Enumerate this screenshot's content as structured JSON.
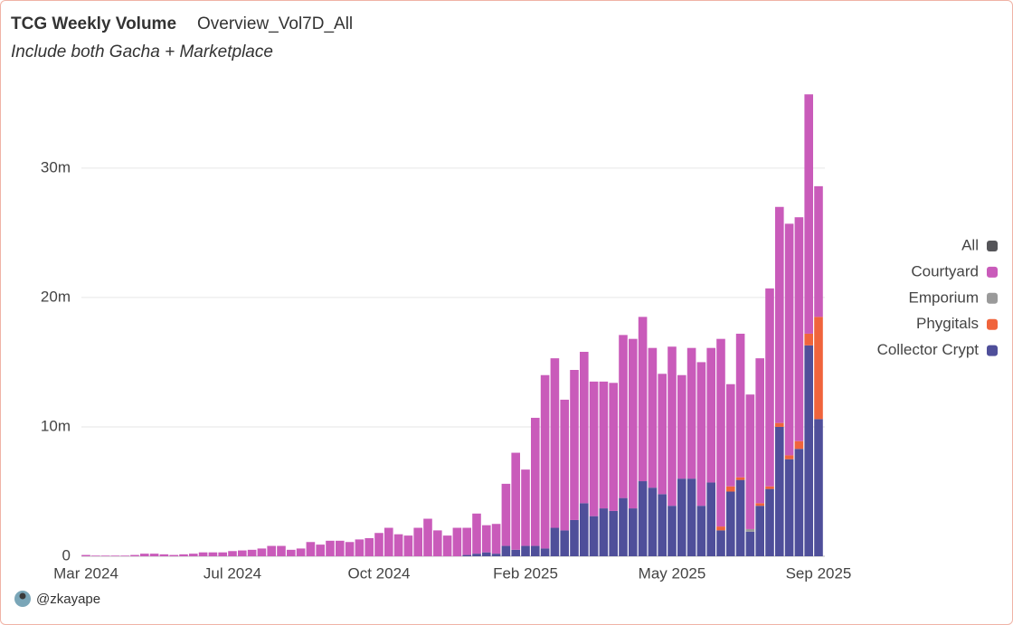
{
  "header": {
    "title": "TCG Weekly Volume",
    "query": "Overview_Vol7D_All",
    "subtitle": "Include both Gacha + Marketplace"
  },
  "footer": {
    "author": "@zkayape"
  },
  "chart_data": {
    "type": "stacked_bar",
    "categories": [
      "Mar 2024",
      null,
      null,
      null,
      null,
      null,
      null,
      null,
      null,
      null,
      null,
      null,
      null,
      null,
      null,
      "Jul 2024",
      null,
      null,
      null,
      null,
      null,
      null,
      null,
      null,
      null,
      null,
      null,
      null,
      null,
      null,
      "Oct 2024",
      null,
      null,
      null,
      null,
      null,
      null,
      null,
      null,
      null,
      null,
      null,
      null,
      null,
      null,
      "Feb 2025",
      null,
      null,
      null,
      null,
      null,
      null,
      null,
      null,
      null,
      null,
      null,
      null,
      null,
      null,
      "May 2025",
      null,
      null,
      null,
      null,
      null,
      null,
      null,
      null,
      null,
      null,
      null,
      null,
      null,
      null,
      "Sep 2025"
    ],
    "ylim": [
      0,
      36000000
    ],
    "yticks": [
      0,
      {
        "value": 10000000,
        "label": "10m"
      },
      {
        "value": 20000000,
        "label": "20m"
      },
      {
        "value": 30000000,
        "label": "30m"
      }
    ],
    "grid": true,
    "legend": "right",
    "series": [
      {
        "name": "All",
        "color": "#555559",
        "values": [
          0,
          0,
          0,
          0,
          0,
          0,
          0,
          0,
          0,
          0,
          0,
          0,
          0,
          0,
          0,
          0,
          0,
          0,
          0,
          0,
          0,
          0,
          0,
          0,
          0,
          0,
          0,
          0,
          0,
          0,
          0,
          0,
          0,
          0,
          0,
          0,
          0,
          0,
          0,
          0,
          0,
          0,
          0,
          0,
          0,
          0,
          0,
          0,
          0,
          0,
          0,
          0,
          0,
          0,
          0,
          0,
          0,
          0,
          0,
          0,
          0,
          0,
          0,
          0,
          0,
          0,
          0,
          0,
          0,
          0,
          0,
          0,
          0,
          0,
          0,
          0
        ]
      },
      {
        "name": "Courtyard",
        "color": "#c95bba",
        "values": [
          100000,
          50000,
          50000,
          50000,
          50000,
          100000,
          200000,
          200000,
          150000,
          100000,
          150000,
          200000,
          300000,
          300000,
          300000,
          400000,
          450000,
          500000,
          600000,
          800000,
          800000,
          500000,
          600000,
          1100000,
          900000,
          1200000,
          1200000,
          1100000,
          1300000,
          1400000,
          1800000,
          2200000,
          1700000,
          1600000,
          2200000,
          2900000,
          2000000,
          1600000,
          2200000,
          2100000,
          3100000,
          2100000,
          2300000,
          4800000,
          7500000,
          5900000,
          9900000,
          13400000,
          13100000,
          10100000,
          11600000,
          11700000,
          10400000,
          9800000,
          9900000,
          12600000,
          13100000,
          12700000,
          10800000,
          9300000,
          12300000,
          8000000,
          10100000,
          11100000,
          10400000,
          14500000,
          7900000,
          11100000,
          10400000,
          11200000,
          15300000,
          16700000,
          17900000,
          17300000,
          18500000,
          10100000
        ]
      },
      {
        "name": "Emporium",
        "color": "#9a9a9a",
        "values": [
          0,
          0,
          0,
          0,
          0,
          0,
          0,
          0,
          0,
          0,
          0,
          0,
          0,
          0,
          0,
          0,
          0,
          0,
          0,
          0,
          0,
          0,
          0,
          0,
          0,
          0,
          0,
          0,
          0,
          0,
          0,
          0,
          0,
          0,
          0,
          0,
          0,
          0,
          0,
          0,
          0,
          0,
          0,
          0,
          0,
          0,
          0,
          0,
          0,
          0,
          0,
          0,
          0,
          0,
          0,
          0,
          0,
          0,
          0,
          0,
          0,
          0,
          0,
          0,
          0,
          0,
          0,
          0,
          200000,
          0,
          0,
          0,
          0,
          0,
          0,
          0
        ]
      },
      {
        "name": "Phygitals",
        "color": "#f0643c",
        "values": [
          0,
          0,
          0,
          0,
          0,
          0,
          0,
          0,
          0,
          0,
          0,
          0,
          0,
          0,
          0,
          0,
          0,
          0,
          0,
          0,
          0,
          0,
          0,
          0,
          0,
          0,
          0,
          0,
          0,
          0,
          0,
          0,
          0,
          0,
          0,
          0,
          0,
          0,
          0,
          0,
          0,
          0,
          0,
          0,
          0,
          0,
          0,
          0,
          0,
          0,
          0,
          0,
          0,
          0,
          0,
          0,
          0,
          0,
          0,
          0,
          0,
          0,
          0,
          0,
          0,
          300000,
          400000,
          200000,
          0,
          200000,
          200000,
          300000,
          300000,
          600000,
          900000,
          7900000
        ]
      },
      {
        "name": "Collector Crypt",
        "color": "#4f4f9a",
        "values": [
          0,
          0,
          0,
          0,
          0,
          0,
          0,
          0,
          0,
          0,
          0,
          0,
          0,
          0,
          0,
          0,
          0,
          0,
          0,
          0,
          0,
          0,
          0,
          0,
          0,
          0,
          0,
          0,
          0,
          0,
          0,
          0,
          0,
          0,
          0,
          0,
          0,
          0,
          0,
          100000,
          200000,
          300000,
          200000,
          800000,
          500000,
          800000,
          800000,
          600000,
          2200000,
          2000000,
          2800000,
          4100000,
          3100000,
          3700000,
          3500000,
          4500000,
          3700000,
          5800000,
          5300000,
          4800000,
          3900000,
          6000000,
          6000000,
          3900000,
          5700000,
          2000000,
          5000000,
          5900000,
          1900000,
          3900000,
          5200000,
          10000000,
          7500000,
          8300000,
          16300000,
          10600000
        ]
      }
    ]
  }
}
